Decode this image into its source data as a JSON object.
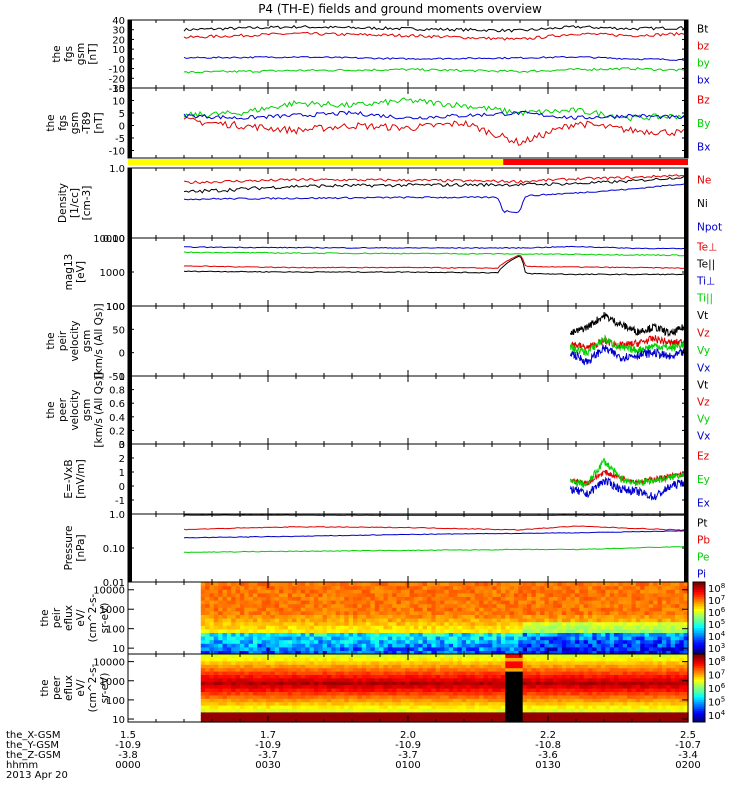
{
  "title": "P4 (TH-E) fields and ground moments overview",
  "colors": {
    "black": "#000000",
    "red": "#e00000",
    "green": "#00d000",
    "blue": "#0000d0",
    "yellow": "#ffff00",
    "bar_red": "#ff0000"
  },
  "chart_data": [
    {
      "type": "line",
      "id": "p0",
      "ylabel": [
        "the",
        "fgs",
        "gsm",
        "[nT]"
      ],
      "ylim": [
        -30,
        40
      ],
      "yticks": [
        -30,
        -20,
        -10,
        0,
        10,
        20,
        30,
        40
      ],
      "series": [
        {
          "name": "Bt",
          "color": "black",
          "x": [
            1.6,
            1.8,
            2.0,
            2.2,
            2.3,
            2.4,
            2.5
          ],
          "values": [
            30,
            33,
            31,
            29,
            33,
            31,
            32
          ],
          "noise": 1.5
        },
        {
          "name": "bz",
          "color": "red",
          "x": [
            1.6,
            1.8,
            2.0,
            2.2,
            2.3,
            2.4,
            2.5
          ],
          "values": [
            22,
            26,
            24,
            20,
            26,
            24,
            26
          ],
          "noise": 1.5
        },
        {
          "name": "by",
          "color": "green",
          "x": [
            1.6,
            1.8,
            2.0,
            2.2,
            2.3,
            2.4,
            2.5
          ],
          "values": [
            -14,
            -12,
            -11,
            -13,
            -11,
            -10,
            -12
          ],
          "noise": 1.2
        },
        {
          "name": "bx",
          "color": "blue",
          "x": [
            1.6,
            1.8,
            2.0,
            2.2,
            2.3,
            2.4,
            2.5
          ],
          "values": [
            1,
            2,
            0,
            1,
            2,
            0,
            -1
          ],
          "noise": 0.8
        }
      ]
    },
    {
      "type": "line",
      "id": "p1",
      "ylabel": [
        "the",
        "fgs",
        "gsm",
        "-T89",
        "[nT]"
      ],
      "ylim": [
        -13,
        15
      ],
      "yticks": [
        -10,
        -5,
        0,
        5,
        10,
        15
      ],
      "series": [
        {
          "name": "Bz",
          "color": "red",
          "x": [
            1.6,
            1.7,
            1.8,
            1.9,
            2.0,
            2.1,
            2.2,
            2.3,
            2.4,
            2.5
          ],
          "values": [
            2,
            0,
            -2,
            0,
            -1,
            1,
            -7,
            1,
            -2,
            -3
          ],
          "noise": 1.4
        },
        {
          "name": "By",
          "color": "green",
          "x": [
            1.6,
            1.7,
            1.8,
            1.9,
            2.0,
            2.1,
            2.2,
            2.3,
            2.4,
            2.5
          ],
          "values": [
            4,
            5,
            9,
            8,
            10,
            8,
            5,
            6,
            3,
            4
          ],
          "noise": 1.2
        },
        {
          "name": "Bx",
          "color": "blue",
          "x": [
            1.6,
            1.7,
            1.8,
            1.9,
            2.0,
            2.1,
            2.2,
            2.3,
            2.4,
            2.5
          ],
          "values": [
            4,
            3,
            4,
            5,
            3,
            4,
            5,
            3,
            4,
            3
          ],
          "noise": 0.8
        }
      ]
    },
    {
      "type": "line",
      "id": "p2",
      "log": true,
      "ylabel": [
        "Density",
        "[1/cc]",
        "[cm-3]"
      ],
      "ylim": [
        0.1,
        1.0
      ],
      "yticks": [
        0.1,
        1.0
      ],
      "series": [
        {
          "name": "Ne",
          "color": "red",
          "x": [
            1.6,
            1.8,
            2.0,
            2.2,
            2.3,
            2.4,
            2.5
          ],
          "values": [
            0.62,
            0.68,
            0.67,
            0.64,
            0.7,
            0.73,
            0.8
          ],
          "noise": 0.03
        },
        {
          "name": "Ni",
          "color": "black",
          "x": [
            1.6,
            1.8,
            2.0,
            2.2,
            2.3,
            2.4,
            2.5
          ],
          "values": [
            0.45,
            0.55,
            0.57,
            0.58,
            0.6,
            0.65,
            0.75
          ],
          "noise": 0.03
        },
        {
          "name": "Npot",
          "color": "blue",
          "x": [
            1.6,
            1.8,
            2.0,
            2.16,
            2.17,
            2.2,
            2.21,
            2.3,
            2.4,
            2.5
          ],
          "values": [
            0.36,
            0.37,
            0.38,
            0.38,
            0.24,
            0.24,
            0.4,
            0.44,
            0.5,
            0.6
          ],
          "noise": 0.01
        }
      ]
    },
    {
      "type": "line",
      "id": "p3",
      "log": true,
      "ylabel": [
        "mag13",
        "[eV]"
      ],
      "ylim": [
        100,
        10000
      ],
      "yticks": [
        100,
        1000,
        10000
      ],
      "series": [
        {
          "name": "Te⊥",
          "color": "red",
          "x": [
            1.6,
            1.8,
            2.0,
            2.16,
            2.2,
            2.21,
            2.3,
            2.4,
            2.5
          ],
          "values": [
            1500,
            1350,
            1350,
            1300,
            3200,
            1450,
            1400,
            1350,
            1300
          ],
          "noise": 40
        },
        {
          "name": "Te||",
          "color": "black",
          "x": [
            1.6,
            1.8,
            2.0,
            2.16,
            2.2,
            2.21,
            2.3,
            2.4,
            2.5
          ],
          "values": [
            1050,
            1000,
            1000,
            950,
            3000,
            900,
            850,
            850,
            850
          ],
          "noise": 30
        },
        {
          "name": "Ti⊥",
          "color": "blue",
          "x": [
            1.6,
            1.8,
            2.0,
            2.2,
            2.3,
            2.4,
            2.5
          ],
          "values": [
            5400,
            5200,
            5100,
            5100,
            5600,
            5000,
            4800
          ],
          "noise": 150
        },
        {
          "name": "Ti||",
          "color": "green",
          "x": [
            1.6,
            1.8,
            2.0,
            2.2,
            2.3,
            2.4,
            2.5
          ],
          "values": [
            3800,
            3600,
            3500,
            3400,
            3300,
            3200,
            3100
          ],
          "noise": 120
        }
      ]
    },
    {
      "type": "line",
      "id": "p4",
      "ylabel": [
        "the",
        "peir",
        "velocity",
        "gsm",
        "[km/s (All Qs)]"
      ],
      "ylim": [
        -50,
        100
      ],
      "yticks": [
        -50,
        0,
        50,
        100
      ],
      "series": [
        {
          "name": "Vt",
          "color": "black",
          "x": [
            2.29,
            2.32,
            2.35,
            2.38,
            2.41,
            2.44,
            2.47,
            2.5
          ],
          "values": [
            40,
            55,
            80,
            60,
            45,
            55,
            40,
            60
          ],
          "noise": 8
        },
        {
          "name": "Vz",
          "color": "red",
          "x": [
            2.29,
            2.32,
            2.35,
            2.38,
            2.41,
            2.44,
            2.47,
            2.5
          ],
          "values": [
            20,
            10,
            25,
            15,
            20,
            30,
            20,
            25
          ],
          "noise": 8
        },
        {
          "name": "Vy",
          "color": "green",
          "x": [
            2.29,
            2.32,
            2.35,
            2.38,
            2.41,
            2.44,
            2.47,
            2.5
          ],
          "values": [
            10,
            0,
            30,
            10,
            5,
            15,
            10,
            20
          ],
          "noise": 8
        },
        {
          "name": "Vx",
          "color": "blue",
          "x": [
            2.29,
            2.32,
            2.35,
            2.38,
            2.41,
            2.44,
            2.47,
            2.5
          ],
          "values": [
            0,
            -20,
            10,
            -10,
            -5,
            0,
            -10,
            5
          ],
          "noise": 9
        }
      ]
    },
    {
      "type": "line",
      "id": "p5",
      "ylabel": [
        "the",
        "peer",
        "velocity",
        "gsm",
        "[km/s (All Qs)]"
      ],
      "ylim": [
        0,
        1.0
      ],
      "yticks": [
        0.0,
        0.2,
        0.4,
        0.6,
        0.8,
        1.0
      ],
      "series": [
        {
          "name": "Vt",
          "color": "black",
          "x": [],
          "values": []
        },
        {
          "name": "Vz",
          "color": "red",
          "x": [],
          "values": []
        },
        {
          "name": "Vy",
          "color": "green",
          "x": [],
          "values": []
        },
        {
          "name": "Vx",
          "color": "blue",
          "x": [],
          "values": []
        }
      ]
    },
    {
      "type": "line",
      "id": "p6",
      "ylabel": [
        "E=-VxB",
        "[mV/m]"
      ],
      "ylim": [
        -2,
        3
      ],
      "yticks": [
        -1,
        0,
        1,
        2,
        3
      ],
      "series": [
        {
          "name": "Ez",
          "color": "red",
          "x": [
            2.29,
            2.32,
            2.35,
            2.38,
            2.41,
            2.44,
            2.47,
            2.5
          ],
          "values": [
            0.4,
            0.2,
            1.0,
            0.6,
            0.3,
            0.5,
            0.7,
            0.9
          ],
          "noise": 0.2
        },
        {
          "name": "Ey",
          "color": "green",
          "x": [
            2.29,
            2.32,
            2.35,
            2.38,
            2.41,
            2.44,
            2.47,
            2.5
          ],
          "values": [
            0.3,
            0.1,
            1.8,
            0.5,
            0.2,
            0.4,
            0.6,
            1.0
          ],
          "noise": 0.25
        },
        {
          "name": "Ex",
          "color": "blue",
          "x": [
            2.29,
            2.32,
            2.35,
            2.38,
            2.41,
            2.44,
            2.47,
            2.5
          ],
          "values": [
            -0.2,
            -0.6,
            0.4,
            -0.2,
            -0.4,
            -0.8,
            0.0,
            0.4
          ],
          "noise": 0.3
        }
      ]
    },
    {
      "type": "line",
      "id": "p7",
      "log": true,
      "ylabel": [
        "Pressure",
        "[nPa]"
      ],
      "ylim": [
        0.01,
        1.0
      ],
      "yticks": [
        0.01,
        0.1,
        1.0
      ],
      "series": [
        {
          "name": "Pt",
          "color": "black",
          "x": [
            1.6,
            1.8,
            2.0,
            2.2,
            2.3,
            2.4,
            2.5
          ],
          "values": [
            0.93,
            0.93,
            0.92,
            0.92,
            0.93,
            0.92,
            0.93
          ],
          "noise": 0.005
        },
        {
          "name": "Pb",
          "color": "red",
          "x": [
            1.6,
            1.8,
            2.0,
            2.2,
            2.3,
            2.4,
            2.5
          ],
          "values": [
            0.35,
            0.42,
            0.4,
            0.34,
            0.44,
            0.38,
            0.33
          ],
          "noise": 0.01
        },
        {
          "name": "Pe",
          "color": "green",
          "x": [
            1.6,
            1.8,
            2.0,
            2.2,
            2.3,
            2.4,
            2.5
          ],
          "values": [
            0.075,
            0.08,
            0.085,
            0.09,
            0.09,
            0.1,
            0.11
          ],
          "noise": 0.002
        },
        {
          "name": "Pi",
          "color": "blue",
          "x": [
            1.6,
            1.8,
            2.0,
            2.2,
            2.3,
            2.4,
            2.5
          ],
          "values": [
            0.2,
            0.22,
            0.25,
            0.27,
            0.28,
            0.3,
            0.32
          ],
          "noise": 0.005
        }
      ]
    },
    {
      "type": "heatmap",
      "id": "p8",
      "log": true,
      "ylabel": [
        "the",
        "peir",
        "eflux",
        "eV/",
        "(cm^2-s-",
        "sr-eV)"
      ],
      "ylim": [
        5,
        25000
      ],
      "yticks": [
        10,
        100,
        1000,
        10000
      ],
      "colorbar_ticks": [
        "10^3",
        "10^4",
        "10^5",
        "10^6",
        "10^7",
        "10^8"
      ],
      "data_start": 1.63
    },
    {
      "type": "heatmap",
      "id": "p9",
      "log": true,
      "ylabel": [
        "the",
        "peer",
        "eflux",
        "eV/",
        "(cm^2-s-",
        "sr-eV)"
      ],
      "ylim": [
        7,
        25000
      ],
      "yticks": [
        10,
        100,
        1000,
        10000
      ],
      "colorbar_ticks": [
        "10^4",
        "10^5",
        "10^6",
        "10^7",
        "10^8"
      ],
      "data_start": 1.63,
      "gap": [
        2.17,
        2.2
      ]
    }
  ],
  "mode_bar": {
    "segments": [
      {
        "color": "yellow",
        "from": 1.5,
        "to": 2.17
      },
      {
        "color": "bar_red",
        "from": 2.17,
        "to": 2.5
      }
    ]
  },
  "footer": {
    "row_labels": [
      "the_X-GSM",
      "the_Y-GSM",
      "the_Z-GSM",
      "hhmm",
      "2013 Apr 20"
    ],
    "columns": [
      {
        "x": 1.5,
        "vals": [
          "1.5",
          "-10.9",
          "-3.8",
          "0000"
        ]
      },
      {
        "x": 1.75,
        "vals": [
          "1.7",
          "-10.9",
          "-3.7",
          "0030"
        ]
      },
      {
        "x": 2.0,
        "vals": [
          "2.0",
          "-10.9",
          "-3.7",
          "0100"
        ]
      },
      {
        "x": 2.25,
        "vals": [
          "2.2",
          "-10.8",
          "-3.6",
          "0130"
        ]
      },
      {
        "x": 2.5,
        "vals": [
          "2.5",
          "-10.7",
          "-3.4",
          "0200"
        ]
      }
    ]
  },
  "xlim": [
    1.5,
    2.5
  ]
}
